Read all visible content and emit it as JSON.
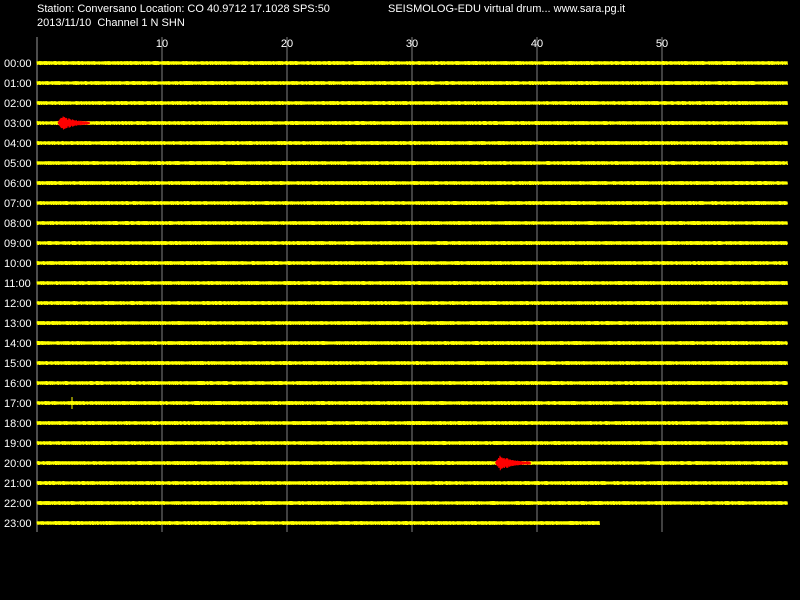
{
  "header": {
    "station_line": "Station: Conversano Location: CO 40.9712 17.1028 SPS:50",
    "brand_line": "SEISMOLOG-EDU virtual drum... www.sara.pg.it",
    "date_line": "2013/11/10  Channel 1 N SHN"
  },
  "colors": {
    "background": "#000000",
    "trace": "#ffff00",
    "event": "#ff0000",
    "grid": "#ffffff"
  },
  "chart_data": {
    "type": "line",
    "title": "",
    "xlabel": "",
    "ylabel": "",
    "xlim": [
      0,
      60
    ],
    "x_ticks": [
      10,
      20,
      30,
      40,
      50
    ],
    "x_tick_labels": [
      "10",
      "20",
      "30",
      "40",
      "50"
    ],
    "grid": true,
    "rows": [
      "00:00",
      "01:00",
      "02:00",
      "03:00",
      "04:00",
      "05:00",
      "06:00",
      "07:00",
      "08:00",
      "09:00",
      "10:00",
      "11:00",
      "12:00",
      "13:00",
      "14:00",
      "15:00",
      "16:00",
      "17:00",
      "18:00",
      "19:00",
      "20:00",
      "21:00",
      "22:00",
      "23:00"
    ],
    "trace_end_minute_last_row": 45,
    "events": [
      {
        "row": "03:00",
        "start_minute": 1.7,
        "end_minute": 4.2,
        "amplitude": "high"
      },
      {
        "row": "20:00",
        "start_minute": 36.7,
        "end_minute": 39.5,
        "amplitude": "high"
      }
    ],
    "spikes": [
      {
        "row": "17:00",
        "minute": 2.8
      }
    ]
  }
}
